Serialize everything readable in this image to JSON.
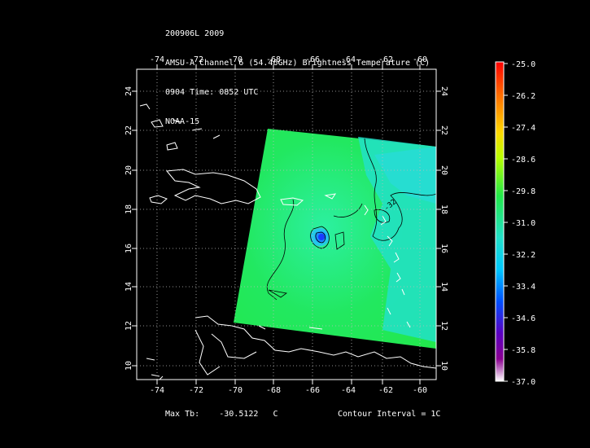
{
  "header": {
    "line1": "200906L 2009",
    "line2": "AMSU-A Channel 6 (54.46GHz) Brightness Temperature (C)",
    "line3": "0904 Time: 0852 UTC",
    "line4": "NOAA-15"
  },
  "map": {
    "lon_ticks": [
      "-74",
      "-72",
      "-70",
      "-68",
      "-66",
      "-64",
      "-62",
      "-60"
    ],
    "lat_ticks": [
      "10",
      "12",
      "14",
      "16",
      "18",
      "20",
      "22",
      "24"
    ],
    "contour_label": "-32",
    "colors": {
      "background": "#000000",
      "swath_green": "#22e84a",
      "swath_cyan": "#22e0c8",
      "center_blue": "#1a3cff",
      "coastline": "#ffffff",
      "contour": "#000000"
    }
  },
  "colorbar": {
    "labels": [
      "-25.0",
      "-26.2",
      "-27.4",
      "-28.6",
      "-29.8",
      "-31.0",
      "-32.2",
      "-33.4",
      "-34.6",
      "-35.8",
      "-37.0"
    ]
  },
  "footer": {
    "max_tb_label": "Max Tb:",
    "max_tb_value": "-30.5122",
    "max_tb_unit": "C",
    "contour_interval": "Contour Interval = 1C"
  }
}
